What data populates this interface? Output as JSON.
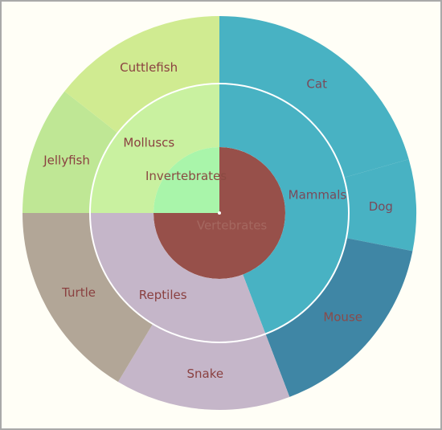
{
  "chart_data": {
    "type": "sunburst",
    "levels": [
      {
        "name": "inner",
        "segments": [
          {
            "label": "Vertebrates",
            "value": 75,
            "color": "#97504a",
            "text_color": "#a56860"
          },
          {
            "label": "Invertebrates",
            "value": 25,
            "color": "#a9f5aa",
            "text_color": "#8a4a42"
          }
        ]
      },
      {
        "name": "middle",
        "segments": [
          {
            "label": "Mammals",
            "value": 44.2,
            "color": "#48b2c3",
            "text_color": "#7a4a5a"
          },
          {
            "label": "Reptiles",
            "value": 30.8,
            "color": "#c5b6c9",
            "text_color": "#8a4040"
          },
          {
            "label": "Molluscs",
            "value": 25,
            "color": "#c9f1a0",
            "text_color": "#8a4040"
          }
        ]
      },
      {
        "name": "outer",
        "segments": [
          {
            "label": "Cat",
            "value": 20.6,
            "color": "#48b2c3",
            "text_color": "#7a4a5a"
          },
          {
            "label": "Dog",
            "value": 7.5,
            "color": "#48b2c3",
            "text_color": "#7a4a5a"
          },
          {
            "label": "Mouse",
            "value": 16.1,
            "color": "#3f86a5",
            "text_color": "#8a4a4a"
          },
          {
            "label": "Snake",
            "value": 14.4,
            "color": "#c5b6c9",
            "text_color": "#8a4040"
          },
          {
            "label": "Turtle",
            "value": 16.4,
            "color": "#b2a697",
            "text_color": "#8a4040"
          },
          {
            "label": "Jellyfish",
            "value": 10.6,
            "color": "#bfe795",
            "text_color": "#8a4040"
          },
          {
            "label": "Cuttlefish",
            "value": 14.4,
            "color": "#d0eb91",
            "text_color": "#8a4040"
          }
        ]
      }
    ]
  }
}
